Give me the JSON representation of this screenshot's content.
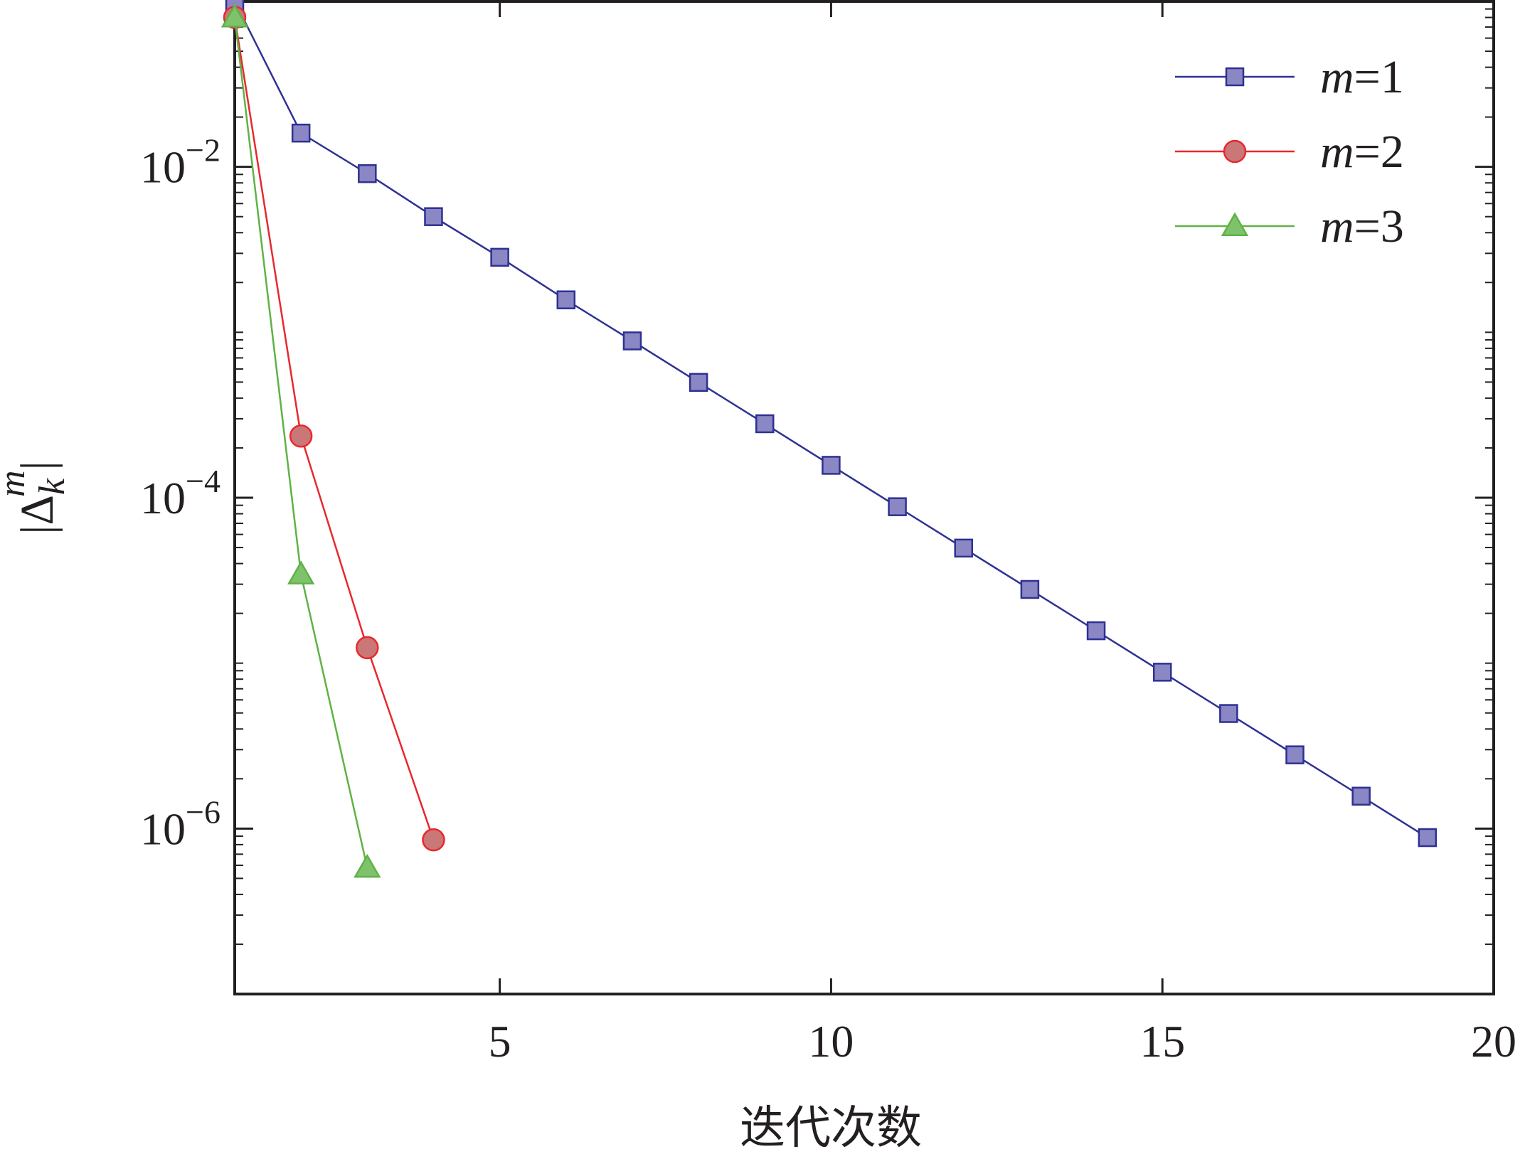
{
  "chart_data": {
    "type": "line",
    "xlabel": "迭代次数",
    "ylabel": "|Δ_k^m|",
    "ylabel_parts": {
      "left_bar": "|",
      "delta": "Δ",
      "subscript": "k",
      "superscript": "m",
      "right_bar": "|"
    },
    "x_scale": "linear",
    "y_scale": "log",
    "xlim": [
      1,
      20
    ],
    "ylim": [
      1e-07,
      0.1
    ],
    "x_ticks": [
      5,
      10,
      15,
      20
    ],
    "x_tick_labels": [
      "5",
      "10",
      "15",
      "20"
    ],
    "y_ticks": [
      0.01,
      0.0001,
      1e-06
    ],
    "y_tick_labels": [
      {
        "base": "10",
        "exp": "−2"
      },
      {
        "base": "10",
        "exp": "−4"
      },
      {
        "base": "10",
        "exp": "−6"
      }
    ],
    "grid": false,
    "legend_position": "top-right",
    "series": [
      {
        "name": "m=1",
        "name_italic": "m",
        "name_rest": "=1",
        "marker": "square",
        "color": "#2e3192",
        "fill": "#8a87c4",
        "x": [
          1,
          2,
          3,
          4,
          5,
          6,
          7,
          8,
          9,
          10,
          11,
          12,
          13,
          14,
          15,
          16,
          17,
          18,
          19
        ],
        "y": [
          0.1,
          0.016,
          0.0091,
          0.005,
          0.00284,
          0.00157,
          0.000887,
          0.000498,
          0.00028,
          0.000157,
          8.82e-05,
          4.96e-05,
          2.79e-05,
          1.57e-05,
          8.82e-06,
          4.96e-06,
          2.79e-06,
          1.57e-06,
          8.82e-07
        ]
      },
      {
        "name": "m=2",
        "name_italic": "m",
        "name_rest": "=2",
        "marker": "circle",
        "color": "#e8282e",
        "fill": "#c97777",
        "x": [
          1,
          2,
          3,
          4
        ],
        "y": [
          0.08,
          0.000236,
          1.24e-05,
          8.55e-07
        ]
      },
      {
        "name": "m=3",
        "name_italic": "m",
        "name_rest": "=3",
        "marker": "triangle",
        "color": "#5fb246",
        "fill": "#7fc26c",
        "x": [
          1,
          2,
          3
        ],
        "y": [
          0.08,
          3.44e-05,
          5.8e-07
        ]
      }
    ]
  }
}
